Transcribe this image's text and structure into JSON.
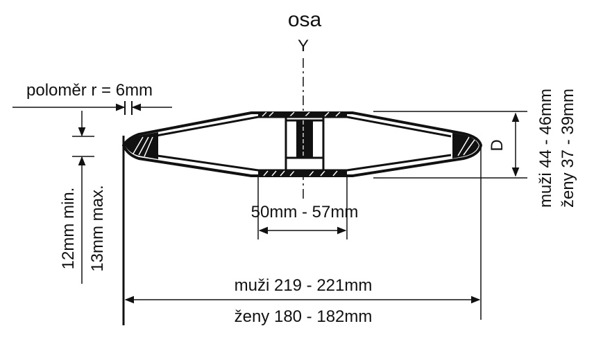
{
  "diagram": {
    "axis_title": "osa",
    "axis_letter": "Y",
    "radius_label": "poloměr r = 6mm",
    "edge_min_label": "12mm min.",
    "edge_max_label": "13mm max.",
    "hub_label": "50mm - 57mm",
    "diameter_men_label": "muži 219 - 221mm",
    "diameter_women_label": "ženy 180 - 182mm",
    "thickness_letter": "D",
    "thickness_men_label": "muži 44 - 46mm",
    "thickness_women_label": "ženy 37 - 39mm"
  },
  "colors": {
    "ink": "#111111",
    "background": "#ffffff"
  }
}
